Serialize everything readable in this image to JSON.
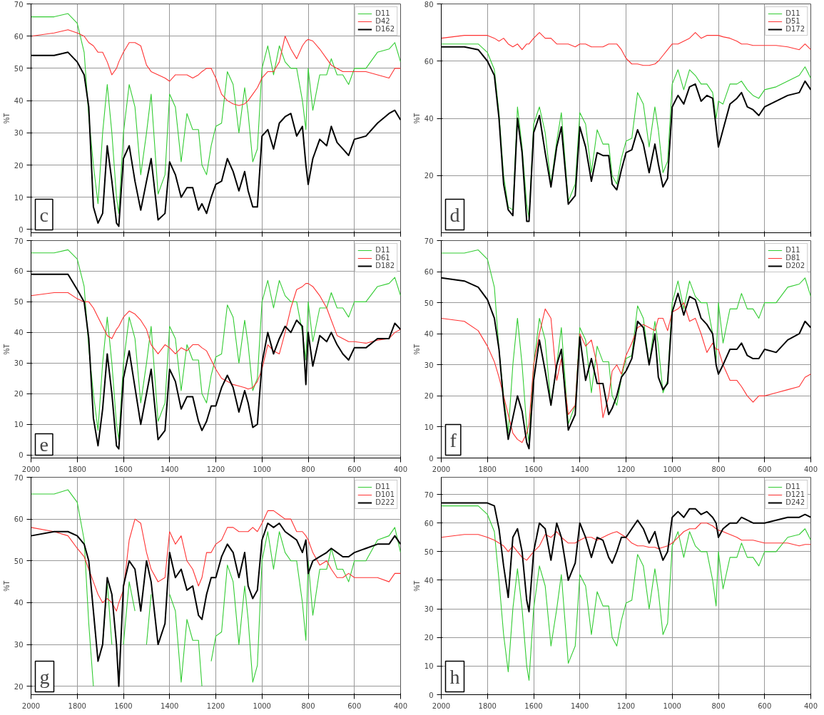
{
  "chart_data": [
    {
      "type": "line",
      "annotations": [
        "c"
      ],
      "ylabel": "%T",
      "xlim": [
        2000,
        400
      ],
      "ylim": [
        -1,
        70
      ],
      "xticks": [
        2000,
        1800,
        1600,
        1400,
        1200,
        1000,
        800,
        600,
        400
      ],
      "yticks": [
        0,
        10,
        20,
        30,
        40,
        50,
        60,
        70
      ],
      "tick_labels": "y",
      "grid": true,
      "legend": "top right",
      "x": [
        2000,
        1900,
        1840,
        1800,
        1770,
        1750,
        1730,
        1710,
        1690,
        1670,
        1650,
        1630,
        1620,
        1600,
        1575,
        1550,
        1525,
        1500,
        1480,
        1450,
        1420,
        1400,
        1375,
        1350,
        1325,
        1300,
        1275,
        1260,
        1240,
        1220,
        1200,
        1175,
        1150,
        1125,
        1100,
        1075,
        1060,
        1040,
        1020,
        1000,
        975,
        950,
        925,
        900,
        875,
        850,
        825,
        810,
        800,
        780,
        750,
        720,
        700,
        675,
        650,
        625,
        600,
        550,
        500,
        450,
        425,
        400
      ],
      "series": [
        {
          "name": "D11",
          "color": "#33cc33",
          "values": [
            66,
            66,
            67,
            64,
            55,
            35,
            20,
            8,
            30,
            45,
            30,
            10,
            5,
            30,
            45,
            38,
            17,
            30,
            42,
            11,
            17,
            42,
            38,
            21,
            36,
            31,
            31,
            20,
            17,
            26,
            32,
            33,
            49,
            45,
            30,
            44,
            36,
            21,
            25,
            50,
            57,
            48,
            57,
            52,
            50,
            50,
            40,
            31,
            50,
            37,
            48,
            48,
            53,
            48,
            48,
            45,
            50,
            50,
            55,
            56,
            58,
            52
          ]
        },
        {
          "name": "D42",
          "color": "#ff3333",
          "values": [
            60,
            61,
            62,
            61,
            60,
            58,
            57,
            55,
            55,
            52,
            48,
            50,
            52,
            55,
            58,
            58,
            57,
            51,
            49,
            48,
            47,
            46,
            48,
            48,
            48,
            47,
            48,
            49,
            50,
            50,
            47,
            42,
            40,
            39,
            38.5,
            39,
            40,
            42,
            44,
            47,
            49,
            49,
            52,
            60,
            56,
            53,
            57,
            58.5,
            59,
            58.5,
            56,
            53,
            51,
            50,
            49,
            49,
            49,
            49,
            48,
            47,
            50,
            50
          ]
        },
        {
          "name": "D162",
          "color": "#000000",
          "values": [
            54,
            54,
            55,
            52,
            48,
            38,
            7,
            2,
            5,
            26,
            15,
            2,
            1,
            22,
            26,
            15,
            6,
            15,
            22,
            3,
            5,
            21,
            17,
            10,
            13,
            13,
            6,
            8,
            5,
            10,
            14,
            15,
            22,
            18,
            12,
            18,
            12,
            7,
            7,
            29,
            31,
            25,
            33,
            35,
            36,
            29,
            32,
            20,
            14,
            22,
            28,
            26,
            32,
            27,
            25,
            23,
            28,
            29,
            33,
            36,
            37,
            34
          ]
        }
      ]
    },
    {
      "type": "line",
      "annotations": [
        "d"
      ],
      "ylabel": "%T",
      "xlim": [
        2000,
        400
      ],
      "ylim": [
        0,
        80
      ],
      "xticks": [
        2000,
        1800,
        1600,
        1400,
        1200,
        1000,
        800,
        600,
        400
      ],
      "yticks": [
        20,
        40,
        60,
        80
      ],
      "tick_labels": "y",
      "grid": true,
      "legend": "top right",
      "x": [
        2000,
        1900,
        1840,
        1800,
        1770,
        1750,
        1730,
        1710,
        1690,
        1670,
        1650,
        1630,
        1620,
        1600,
        1575,
        1550,
        1525,
        1500,
        1480,
        1450,
        1420,
        1400,
        1375,
        1350,
        1325,
        1300,
        1275,
        1260,
        1240,
        1220,
        1200,
        1175,
        1150,
        1125,
        1100,
        1075,
        1060,
        1040,
        1020,
        1000,
        975,
        950,
        925,
        900,
        875,
        850,
        825,
        810,
        800,
        780,
        750,
        720,
        700,
        675,
        650,
        625,
        600,
        550,
        500,
        450,
        425,
        400
      ],
      "series": [
        {
          "name": "D11",
          "color": "#33cc33",
          "values": [
            66,
            66,
            66,
            63,
            57,
            42,
            20,
            9,
            8,
            44,
            30,
            10,
            5,
            38,
            44,
            35,
            17,
            32,
            42,
            11,
            17,
            42,
            38,
            21,
            36,
            31,
            31,
            20,
            17,
            26,
            32,
            33,
            49,
            45,
            30,
            44,
            36,
            21,
            25,
            52,
            57,
            50,
            57,
            55,
            52,
            52,
            49,
            40,
            46,
            45,
            52,
            52,
            53,
            50,
            48,
            47,
            50,
            51,
            53,
            55,
            58,
            54
          ]
        },
        {
          "name": "D51",
          "color": "#ff3333",
          "values": [
            68,
            69,
            69,
            69,
            68,
            67,
            68,
            66,
            65,
            66,
            64,
            66,
            66,
            68,
            70,
            68,
            68,
            66,
            66,
            66,
            65,
            66,
            66,
            65,
            65,
            65,
            66,
            66,
            66,
            64,
            61,
            59,
            59,
            58.5,
            58.5,
            59,
            60,
            62,
            64,
            66,
            66,
            67,
            68,
            70,
            68,
            69,
            69,
            69,
            69,
            68.5,
            68,
            67,
            66,
            66,
            65.5,
            65.5,
            65.5,
            65.5,
            65,
            64,
            66,
            64
          ]
        },
        {
          "name": "D172",
          "color": "#000000",
          "values": [
            65,
            65,
            64,
            60,
            55,
            40,
            17,
            8,
            6,
            40,
            28,
            4,
            4,
            35,
            41,
            28,
            16,
            30,
            37,
            10,
            13,
            37,
            30,
            18,
            28,
            27,
            27,
            17,
            15,
            22,
            28,
            29,
            36,
            31,
            21,
            31,
            24,
            16,
            19,
            44,
            48,
            45,
            51,
            52,
            46,
            48,
            47,
            37,
            30,
            36,
            45,
            47,
            49,
            44,
            43,
            41,
            44,
            46,
            48,
            49,
            53,
            50
          ]
        }
      ]
    },
    {
      "type": "line",
      "annotations": [
        "e"
      ],
      "ylabel": "%T",
      "xlim": [
        2000,
        400
      ],
      "ylim": [
        -1,
        70
      ],
      "xticks": [
        2000,
        1800,
        1600,
        1400,
        1200,
        1000,
        800,
        600,
        400
      ],
      "yticks": [
        0,
        10,
        20,
        30,
        40,
        50,
        60,
        70
      ],
      "grid": true,
      "legend": "top right",
      "x": [
        2000,
        1900,
        1840,
        1800,
        1770,
        1750,
        1730,
        1710,
        1690,
        1670,
        1650,
        1630,
        1620,
        1600,
        1575,
        1550,
        1525,
        1500,
        1480,
        1450,
        1420,
        1400,
        1375,
        1350,
        1325,
        1300,
        1275,
        1260,
        1240,
        1220,
        1200,
        1175,
        1150,
        1125,
        1100,
        1075,
        1060,
        1040,
        1020,
        1000,
        975,
        950,
        925,
        900,
        875,
        850,
        825,
        810,
        800,
        780,
        750,
        720,
        700,
        675,
        650,
        625,
        600,
        550,
        500,
        450,
        425,
        400
      ],
      "series": [
        {
          "name": "D11",
          "color": "#33cc33",
          "values": [
            66,
            66,
            67,
            64,
            55,
            35,
            20,
            8,
            30,
            45,
            30,
            10,
            5,
            30,
            45,
            38,
            17,
            30,
            42,
            11,
            17,
            42,
            38,
            21,
            36,
            31,
            31,
            20,
            17,
            26,
            32,
            33,
            49,
            45,
            30,
            44,
            36,
            21,
            25,
            50,
            57,
            48,
            57,
            52,
            50,
            50,
            40,
            31,
            50,
            37,
            48,
            48,
            53,
            48,
            48,
            45,
            50,
            50,
            55,
            56,
            58,
            52
          ]
        },
        {
          "name": "D61",
          "color": "#ff3333",
          "values": [
            52,
            53,
            53,
            51,
            50,
            50,
            48,
            45,
            42,
            39,
            38,
            41,
            42,
            45,
            47,
            46,
            44,
            41,
            36,
            33,
            36,
            35,
            33,
            35,
            34,
            36,
            36,
            35,
            34,
            31,
            28,
            25,
            24,
            23,
            22.5,
            22,
            21.5,
            22,
            24,
            28,
            36,
            34,
            33,
            40,
            48,
            54,
            55,
            56,
            56,
            55,
            52,
            48,
            44,
            39,
            38,
            37,
            37,
            36.5,
            37.5,
            38,
            40,
            41
          ]
        },
        {
          "name": "D182",
          "color": "#000000",
          "values": [
            59,
            59,
            59,
            54,
            50,
            38,
            12,
            3,
            15,
            33,
            20,
            3,
            2,
            25,
            34,
            22,
            10,
            20,
            28,
            5,
            8,
            28,
            24,
            15,
            19,
            19,
            11,
            8,
            11,
            16,
            16,
            22,
            26,
            22,
            14,
            21,
            17,
            9,
            10,
            30,
            40,
            33,
            38,
            42,
            40,
            44,
            42,
            23,
            40,
            29,
            39,
            37,
            40,
            36,
            33,
            31,
            35,
            35,
            38,
            38,
            43,
            41
          ]
        }
      ]
    },
    {
      "type": "line",
      "annotations": [
        "f"
      ],
      "ylabel": "%T",
      "xlim": [
        2000,
        400
      ],
      "ylim": [
        0,
        70
      ],
      "xticks": [
        2000,
        1800,
        1600,
        1400,
        1200,
        1000,
        800,
        600,
        400
      ],
      "yticks": [
        0,
        10,
        20,
        30,
        40,
        50,
        60,
        70
      ],
      "grid": true,
      "legend": "top right",
      "x": [
        2000,
        1900,
        1840,
        1800,
        1770,
        1750,
        1730,
        1710,
        1690,
        1670,
        1650,
        1630,
        1620,
        1600,
        1575,
        1550,
        1525,
        1500,
        1480,
        1450,
        1420,
        1400,
        1375,
        1350,
        1325,
        1300,
        1275,
        1260,
        1240,
        1220,
        1200,
        1175,
        1150,
        1125,
        1100,
        1075,
        1060,
        1040,
        1020,
        1000,
        975,
        950,
        925,
        900,
        875,
        850,
        825,
        810,
        800,
        780,
        750,
        720,
        700,
        675,
        650,
        625,
        600,
        550,
        500,
        450,
        425,
        400
      ],
      "series": [
        {
          "name": "D11",
          "color": "#33cc33",
          "values": [
            66,
            66,
            67,
            64,
            55,
            35,
            20,
            8,
            30,
            45,
            30,
            10,
            5,
            30,
            45,
            38,
            17,
            30,
            42,
            11,
            17,
            42,
            38,
            21,
            36,
            31,
            31,
            20,
            17,
            26,
            32,
            33,
            49,
            45,
            30,
            44,
            36,
            21,
            25,
            50,
            57,
            48,
            57,
            52,
            50,
            50,
            40,
            31,
            50,
            37,
            48,
            48,
            53,
            48,
            48,
            45,
            50,
            50,
            55,
            56,
            58,
            52
          ]
        },
        {
          "name": "D81",
          "color": "#ff3333",
          "values": [
            45,
            44,
            41,
            36,
            31,
            26,
            20,
            14,
            8,
            6,
            5,
            8,
            11,
            30,
            40,
            48,
            45,
            25,
            32,
            14,
            17,
            40,
            36,
            38,
            30,
            13,
            20,
            28,
            30,
            27,
            33,
            37,
            42,
            43,
            42,
            41,
            45,
            45,
            41,
            47,
            48,
            50,
            44,
            45,
            40,
            34,
            37,
            35,
            35,
            30,
            25,
            25,
            23,
            20,
            18,
            20,
            20,
            21,
            22,
            23,
            26,
            27
          ]
        },
        {
          "name": "D202",
          "color": "#000000",
          "values": [
            58,
            57,
            55,
            51,
            45,
            35,
            18,
            6,
            13,
            20,
            15,
            5,
            3,
            25,
            38,
            28,
            17,
            30,
            35,
            9,
            14,
            39,
            25,
            32,
            24,
            24,
            14,
            16,
            20,
            26,
            28,
            32,
            44,
            42,
            30,
            40,
            26,
            22,
            24,
            47,
            53,
            46,
            52,
            51,
            45,
            43,
            40,
            30,
            27,
            30,
            35,
            35,
            37,
            33,
            32,
            32,
            35,
            34,
            38,
            40,
            44,
            42
          ]
        }
      ]
    },
    {
      "type": "line",
      "annotations": [
        "g"
      ],
      "ylabel": "%T",
      "xlim": [
        2000,
        400
      ],
      "ylim": [
        18,
        70
      ],
      "xticks": [
        2000,
        1800,
        1600,
        1400,
        1200,
        1000,
        800,
        600,
        400
      ],
      "yticks": [
        20,
        30,
        40,
        50,
        60,
        70
      ],
      "grid": true,
      "legend": "top right",
      "x": [
        2000,
        1900,
        1840,
        1800,
        1770,
        1750,
        1730,
        1710,
        1690,
        1670,
        1650,
        1630,
        1620,
        1600,
        1575,
        1550,
        1525,
        1500,
        1480,
        1450,
        1420,
        1400,
        1375,
        1350,
        1325,
        1300,
        1275,
        1260,
        1240,
        1220,
        1200,
        1175,
        1150,
        1125,
        1100,
        1075,
        1060,
        1040,
        1020,
        1000,
        975,
        950,
        925,
        900,
        875,
        850,
        825,
        810,
        800,
        780,
        750,
        720,
        700,
        675,
        650,
        625,
        600,
        550,
        500,
        450,
        425,
        400
      ],
      "series": [
        {
          "name": "D11",
          "color": "#33cc33",
          "values": [
            66,
            66,
            67,
            64,
            55,
            35,
            20,
            null,
            30,
            45,
            30,
            null,
            null,
            30,
            45,
            38,
            null,
            30,
            42,
            null,
            null,
            42,
            38,
            21,
            36,
            31,
            31,
            20,
            null,
            26,
            32,
            33,
            49,
            45,
            30,
            44,
            36,
            21,
            25,
            50,
            57,
            48,
            57,
            52,
            50,
            50,
            40,
            31,
            50,
            37,
            48,
            48,
            53,
            48,
            48,
            45,
            50,
            50,
            55,
            56,
            58,
            52
          ]
        },
        {
          "name": "D101",
          "color": "#ff3333",
          "values": [
            58,
            57,
            56,
            53,
            51,
            48,
            45,
            42,
            40,
            41,
            40,
            38,
            40,
            43,
            55,
            60,
            59,
            52,
            48,
            45,
            46,
            57,
            54,
            56,
            50,
            48,
            44,
            46,
            52,
            52,
            54,
            55,
            58,
            58,
            57,
            57,
            57,
            58,
            57,
            59,
            62,
            62,
            61,
            60,
            60,
            57,
            57,
            56,
            55,
            52,
            49,
            50,
            48,
            46,
            46,
            47,
            46,
            46,
            46,
            45,
            47,
            47
          ]
        },
        {
          "name": "D222",
          "color": "#000000",
          "values": [
            56,
            57,
            57,
            56,
            54,
            50,
            38,
            26,
            30,
            46,
            42,
            30,
            20,
            44,
            50,
            48,
            38,
            50,
            45,
            30,
            35,
            52,
            46,
            48,
            43,
            44,
            37,
            36,
            42,
            46,
            46,
            51,
            54,
            52,
            46,
            52,
            44,
            41,
            43,
            55,
            59,
            58,
            59,
            57,
            56,
            55,
            52,
            55,
            47,
            50,
            51,
            52,
            53,
            52,
            51,
            51,
            52,
            53,
            54,
            54,
            56,
            54
          ]
        }
      ]
    },
    {
      "type": "line",
      "annotations": [
        "h"
      ],
      "ylabel": "%T",
      "xlim": [
        2000,
        400
      ],
      "ylim": [
        0,
        76
      ],
      "xticks": [
        2000,
        1800,
        1600,
        1400,
        1200,
        1000,
        800,
        600,
        400
      ],
      "yticks": [
        0,
        10,
        20,
        30,
        40,
        50,
        60,
        70
      ],
      "grid": true,
      "legend": "top right",
      "x": [
        2000,
        1900,
        1840,
        1800,
        1770,
        1750,
        1730,
        1710,
        1690,
        1670,
        1650,
        1630,
        1620,
        1600,
        1575,
        1550,
        1525,
        1500,
        1480,
        1450,
        1420,
        1400,
        1375,
        1350,
        1325,
        1300,
        1275,
        1260,
        1240,
        1220,
        1200,
        1175,
        1150,
        1125,
        1100,
        1075,
        1060,
        1040,
        1020,
        1000,
        975,
        950,
        925,
        900,
        875,
        850,
        825,
        810,
        800,
        780,
        750,
        720,
        700,
        675,
        650,
        625,
        600,
        550,
        500,
        450,
        425,
        400
      ],
      "series": [
        {
          "name": "D11",
          "color": "#33cc33",
          "values": [
            66,
            66,
            66,
            63,
            57,
            40,
            21,
            8,
            30,
            44,
            30,
            10,
            5,
            30,
            45,
            38,
            17,
            30,
            42,
            11,
            17,
            42,
            38,
            21,
            36,
            31,
            31,
            20,
            17,
            26,
            32,
            33,
            49,
            45,
            30,
            44,
            36,
            21,
            25,
            52,
            57,
            48,
            57,
            52,
            50,
            50,
            40,
            31,
            50,
            37,
            48,
            48,
            53,
            48,
            48,
            45,
            50,
            50,
            55,
            56,
            58,
            54
          ]
        },
        {
          "name": "D121",
          "color": "#ff3333",
          "values": [
            55,
            56,
            56,
            55,
            54,
            53,
            52,
            50,
            52,
            50,
            48,
            47,
            48,
            50,
            52,
            56,
            55,
            57,
            55,
            53,
            53,
            54,
            55,
            55,
            54,
            55,
            56,
            56.5,
            57,
            56,
            55,
            53,
            52,
            52,
            51.5,
            51.5,
            51,
            51.5,
            52,
            53,
            55,
            57,
            58,
            58,
            60,
            60,
            59,
            58,
            57.5,
            57,
            56,
            55,
            54,
            54,
            54,
            53.5,
            53,
            53,
            53,
            52,
            52.5,
            52.5
          ]
        },
        {
          "name": "D242",
          "color": "#000000",
          "values": [
            67,
            67,
            67,
            67,
            66,
            58,
            45,
            34,
            55,
            58,
            50,
            33,
            29,
            50,
            60,
            58,
            47,
            60,
            55,
            40,
            46,
            60,
            55,
            48,
            55,
            54,
            48,
            46,
            50,
            55,
            55,
            58,
            61,
            58,
            53,
            57,
            52,
            47,
            50,
            62,
            64,
            62,
            65,
            65,
            63,
            64,
            62,
            60,
            55,
            58,
            60,
            60,
            62,
            61,
            60,
            60,
            60,
            61,
            62,
            62,
            63,
            62
          ]
        }
      ]
    }
  ]
}
